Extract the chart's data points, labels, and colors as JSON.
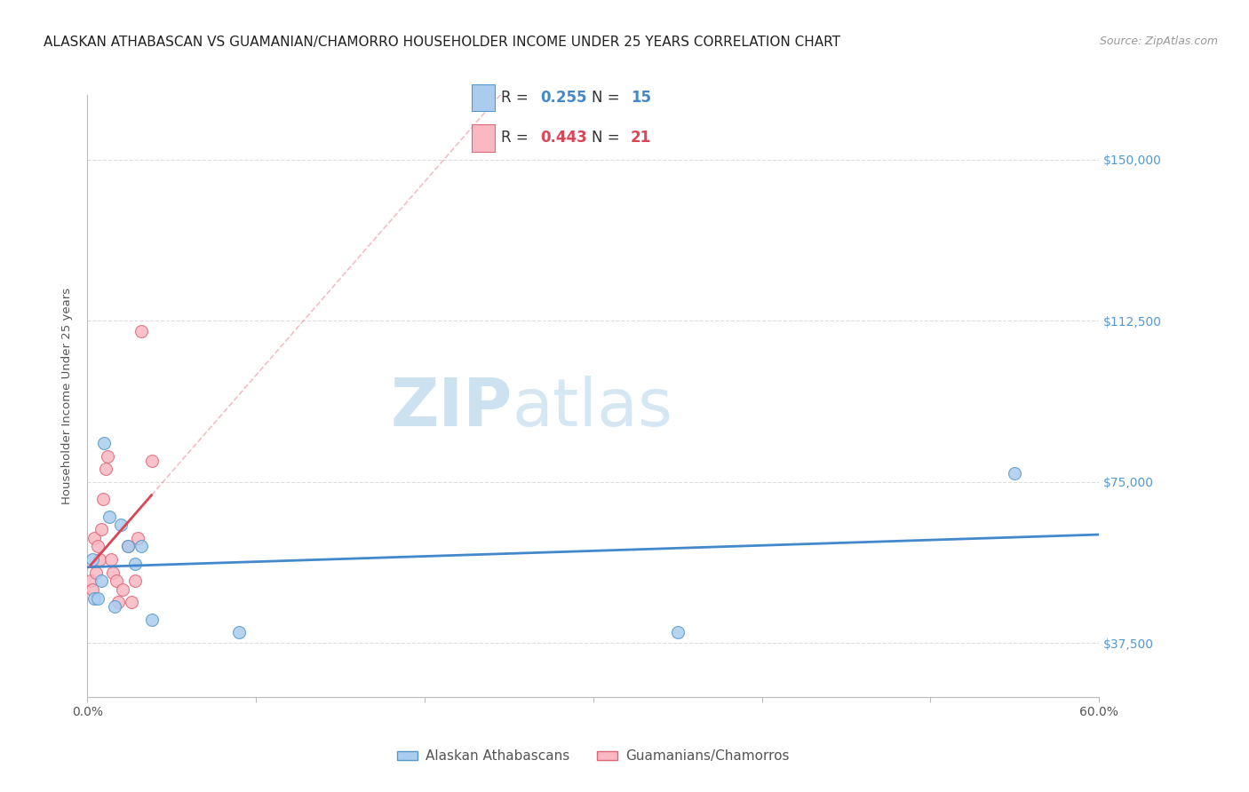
{
  "title": "ALASKAN ATHABASCAN VS GUAMANIAN/CHAMORRO HOUSEHOLDER INCOME UNDER 25 YEARS CORRELATION CHART",
  "source": "Source: ZipAtlas.com",
  "ylabel": "Householder Income Under 25 years",
  "xlim": [
    0.0,
    0.6
  ],
  "ylim": [
    25000,
    165000
  ],
  "yticks": [
    37500,
    75000,
    112500,
    150000
  ],
  "ytick_labels": [
    "$37,500",
    "$75,000",
    "$112,500",
    "$150,000"
  ],
  "xticks": [
    0.0,
    0.1,
    0.2,
    0.3,
    0.4,
    0.5,
    0.6
  ],
  "xtick_labels": [
    "0.0%",
    "",
    "",
    "",
    "",
    "",
    "60.0%"
  ],
  "watermark_zip": "ZIP",
  "watermark_atlas": "atlas",
  "blue_R": 0.255,
  "blue_N": 15,
  "pink_R": 0.443,
  "pink_N": 21,
  "blue_fill_color": "#aaccee",
  "pink_fill_color": "#f9b8c2",
  "blue_edge_color": "#5599cc",
  "pink_edge_color": "#dd6677",
  "blue_line_color": "#4488cc",
  "pink_line_color": "#dd4455",
  "ytick_color": "#5599cc",
  "background_color": "#ffffff",
  "grid_color": "#dddddd",
  "blue_scatter_x": [
    0.003,
    0.004,
    0.006,
    0.008,
    0.01,
    0.013,
    0.016,
    0.02,
    0.024,
    0.028,
    0.032,
    0.038,
    0.09,
    0.35,
    0.55
  ],
  "blue_scatter_y": [
    57000,
    48000,
    48000,
    52000,
    84000,
    67000,
    46000,
    65000,
    60000,
    56000,
    60000,
    43000,
    40000,
    40000,
    77000
  ],
  "pink_scatter_x": [
    0.002,
    0.003,
    0.004,
    0.005,
    0.006,
    0.007,
    0.008,
    0.009,
    0.011,
    0.012,
    0.014,
    0.015,
    0.017,
    0.018,
    0.021,
    0.024,
    0.026,
    0.028,
    0.03,
    0.032,
    0.038
  ],
  "pink_scatter_y": [
    52000,
    50000,
    62000,
    54000,
    60000,
    57000,
    64000,
    71000,
    78000,
    81000,
    57000,
    54000,
    52000,
    47000,
    50000,
    60000,
    47000,
    52000,
    62000,
    110000,
    80000
  ],
  "legend_label_blue": "Alaskan Athabascans",
  "legend_label_pink": "Guamanians/Chamorros",
  "marker_size": 100,
  "title_fontsize": 11,
  "axis_label_fontsize": 9.5,
  "tick_fontsize": 10,
  "legend_fontsize": 12
}
